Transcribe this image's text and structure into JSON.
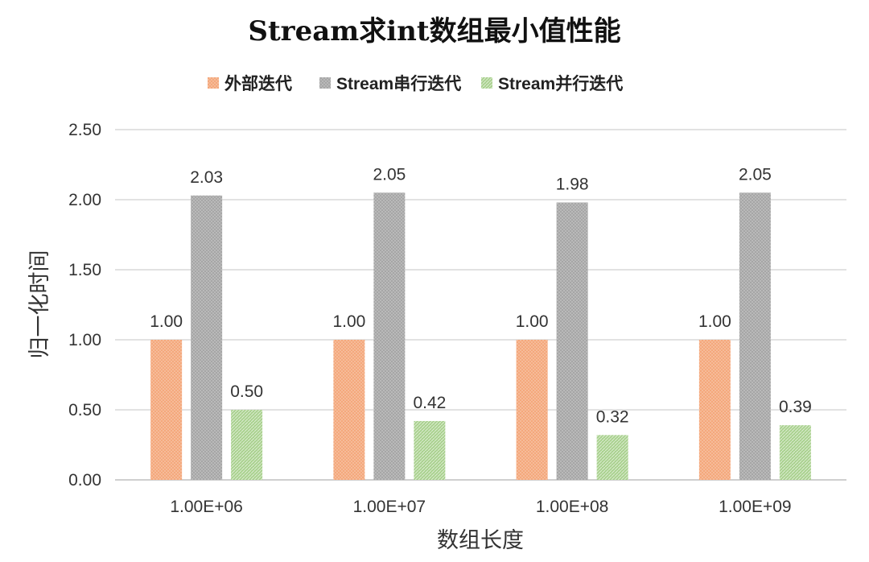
{
  "chart_data": {
    "type": "bar",
    "title": "Stream求int数组最小值性能",
    "xlabel": "数组长度",
    "ylabel": "归一化时间",
    "categories": [
      "1.00E+06",
      "1.00E+07",
      "1.00E+08",
      "1.00E+09"
    ],
    "series": [
      {
        "name": "外部迭代",
        "values": [
          1.0,
          1.0,
          1.0,
          1.0
        ],
        "color": "#f4a87c",
        "labels": [
          "1.00",
          "1.00",
          "1.00",
          "1.00"
        ]
      },
      {
        "name": "Stream串行迭代",
        "values": [
          2.03,
          2.05,
          1.98,
          2.05
        ],
        "color": "#a6a6a6",
        "labels": [
          "2.03",
          "2.05",
          "1.98",
          "2.05"
        ]
      },
      {
        "name": "Stream并行迭代",
        "values": [
          0.5,
          0.42,
          0.32,
          0.39
        ],
        "color": "#a9d18e",
        "labels": [
          "0.50",
          "0.42",
          "0.32",
          "0.39"
        ]
      }
    ],
    "ylim": [
      0,
      2.5
    ],
    "yticks": [
      "0.00",
      "0.50",
      "1.00",
      "1.50",
      "2.00",
      "2.50"
    ],
    "grid": true,
    "legend_position": "top"
  }
}
